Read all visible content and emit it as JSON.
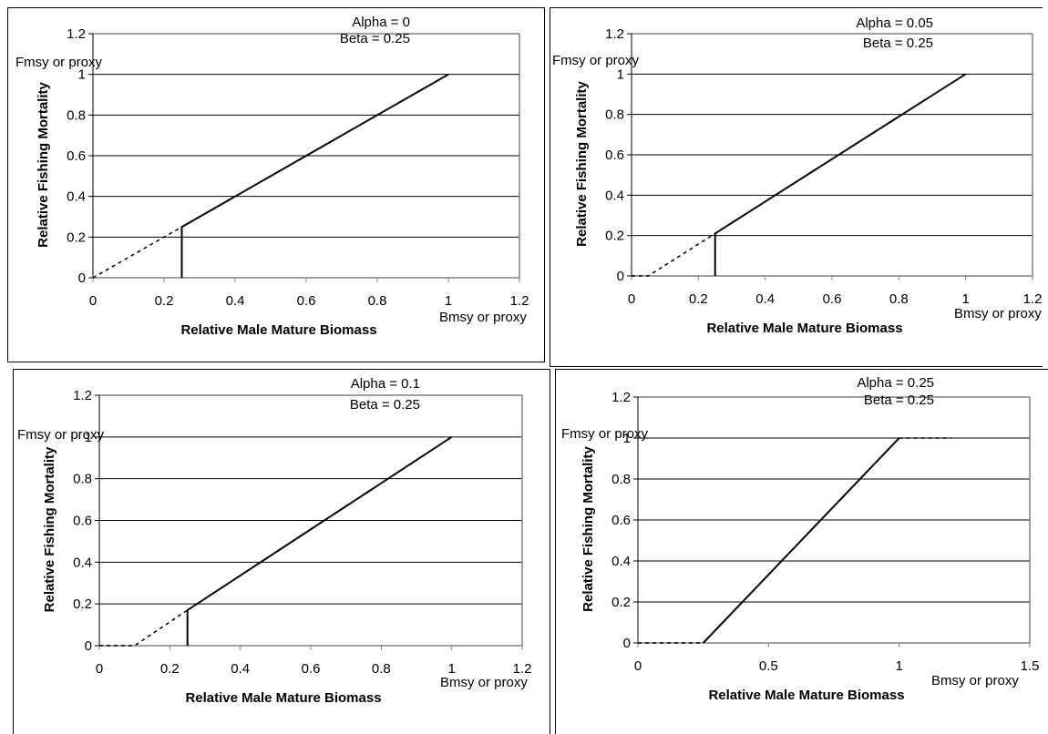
{
  "chart_data": [
    {
      "type": "line",
      "xlabel": "Relative Male Mature Biomass",
      "ylabel": "Relative Fishing Mortality",
      "xlim": [
        0,
        1.2
      ],
      "ylim": [
        0,
        1.2
      ],
      "x_ticks": [
        "0",
        "0.2",
        "0.4",
        "0.6",
        "0.8",
        "1",
        "1.2"
      ],
      "y_ticks": [
        "0",
        "0.2",
        "0.4",
        "0.6",
        "0.8",
        "1",
        "1.2"
      ],
      "grid": "horizontal",
      "annotations": {
        "alpha": "Alpha = 0",
        "beta": "Beta = 0.25",
        "fmsy": "Fmsy or proxy",
        "bmsy": "Bmsy or proxy"
      },
      "series": [
        {
          "style": "solid",
          "points": [
            [
              0.25,
              0
            ],
            [
              0.25,
              0.25
            ],
            [
              1,
              1
            ]
          ]
        },
        {
          "style": "dashed",
          "points": [
            [
              0,
              0
            ],
            [
              0.25,
              0.25
            ]
          ]
        }
      ]
    },
    {
      "type": "line",
      "xlabel": "Relative Male Mature Biomass",
      "ylabel": "Relative Fishing Mortality",
      "xlim": [
        0,
        1.2
      ],
      "ylim": [
        0,
        1.2
      ],
      "x_ticks": [
        "0",
        "0.2",
        "0.4",
        "0.6",
        "0.8",
        "1",
        "1.2"
      ],
      "y_ticks": [
        "0",
        "0.2",
        "0.4",
        "0.6",
        "0.8",
        "1",
        "1.2"
      ],
      "grid": "horizontal",
      "annotations": {
        "alpha": "Alpha = 0.05",
        "beta": "Beta = 0.25",
        "fmsy": "Fmsy or proxy",
        "bmsy": "Bmsy or proxy"
      },
      "series": [
        {
          "style": "solid",
          "points": [
            [
              0.25,
              0
            ],
            [
              0.25,
              0.21
            ],
            [
              1,
              1
            ]
          ]
        },
        {
          "style": "dashed",
          "points": [
            [
              0,
              0
            ],
            [
              0.05,
              0
            ],
            [
              0.25,
              0.21
            ]
          ]
        }
      ]
    },
    {
      "type": "line",
      "xlabel": "Relative Male Mature Biomass",
      "ylabel": "Relative Fishing Mortality",
      "xlim": [
        0,
        1.2
      ],
      "ylim": [
        0,
        1.2
      ],
      "x_ticks": [
        "0",
        "0.2",
        "0.4",
        "0.6",
        "0.8",
        "1",
        "1.2"
      ],
      "y_ticks": [
        "0",
        "0.2",
        "0.4",
        "0.6",
        "0.8",
        "1",
        "1.2"
      ],
      "grid": "horizontal",
      "annotations": {
        "alpha": "Alpha = 0.1",
        "beta": "Beta = 0.25",
        "fmsy": "Fmsy or proxy",
        "bmsy": "Bmsy or proxy"
      },
      "series": [
        {
          "style": "solid",
          "points": [
            [
              0.25,
              0
            ],
            [
              0.25,
              0.17
            ],
            [
              1,
              1
            ]
          ]
        },
        {
          "style": "dashed",
          "points": [
            [
              0,
              0
            ],
            [
              0.1,
              0
            ],
            [
              0.25,
              0.17
            ]
          ]
        }
      ]
    },
    {
      "type": "line",
      "xlabel": "Relative Male Mature Biomass",
      "ylabel": "Relative Fishing Mortality",
      "xlim": [
        0,
        1.5
      ],
      "ylim": [
        0,
        1.2
      ],
      "x_ticks": [
        "0",
        "0.5",
        "1",
        "1.5"
      ],
      "y_ticks": [
        "0",
        "0.2",
        "0.4",
        "0.6",
        "0.8",
        "1",
        "1.2"
      ],
      "grid": "horizontal",
      "annotations": {
        "alpha": "Alpha = 0.25",
        "beta": "Beta = 0.25",
        "fmsy": "Fmsy or proxy",
        "bmsy": "Bmsy or proxy"
      },
      "series": [
        {
          "style": "solid",
          "points": [
            [
              0.25,
              0
            ],
            [
              1,
              1
            ]
          ]
        },
        {
          "style": "dashed",
          "points": [
            [
              0,
              0
            ],
            [
              0.25,
              0
            ]
          ]
        },
        {
          "style": "dashed",
          "points": [
            [
              1,
              1
            ],
            [
              1.2,
              1
            ]
          ]
        }
      ]
    }
  ]
}
